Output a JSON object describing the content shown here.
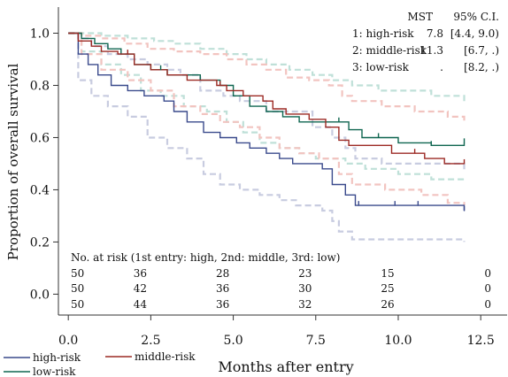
{
  "chart_data": {
    "type": "line",
    "step": true,
    "ylabel": "Proportion of overall survival",
    "xlabel": "Months after entry",
    "xlim": [
      -0.3,
      13.3
    ],
    "ylim": [
      -0.08,
      1.1
    ],
    "x_ticks": [
      0.0,
      2.5,
      5.0,
      7.5,
      10.0,
      12.5
    ],
    "x_tick_labels": [
      "0.0",
      "2.5",
      "5.0",
      "7.5",
      "10.0",
      "12.5"
    ],
    "y_ticks": [
      0.0,
      0.2,
      0.4,
      0.6,
      0.8,
      1.0
    ],
    "y_tick_labels": [
      "0.0",
      "0.2",
      "0.4",
      "0.6",
      "0.8",
      "1.0"
    ],
    "grid": false,
    "legend_placement": "bottom-left",
    "series": [
      {
        "name": "high-risk",
        "color": "#3a4a8c",
        "ci_color": "#c8cce0",
        "points": [
          [
            0,
            1.0
          ],
          [
            0.3,
            0.92
          ],
          [
            0.6,
            0.88
          ],
          [
            0.9,
            0.84
          ],
          [
            1.3,
            0.8
          ],
          [
            1.8,
            0.78
          ],
          [
            2.3,
            0.76
          ],
          [
            2.9,
            0.74
          ],
          [
            3.2,
            0.7
          ],
          [
            3.6,
            0.66
          ],
          [
            4.1,
            0.62
          ],
          [
            4.6,
            0.6
          ],
          [
            5.1,
            0.58
          ],
          [
            5.5,
            0.56
          ],
          [
            6.0,
            0.54
          ],
          [
            6.4,
            0.52
          ],
          [
            6.8,
            0.5
          ],
          [
            7.7,
            0.48
          ],
          [
            8.0,
            0.42
          ],
          [
            8.4,
            0.38
          ],
          [
            8.7,
            0.34
          ],
          [
            12.0,
            0.32
          ]
        ],
        "censor_x": [
          8.8,
          9.9,
          10.6,
          12.0
        ],
        "ci_upper": [
          [
            0,
            1.0
          ],
          [
            0.3,
            0.98
          ],
          [
            0.7,
            0.95
          ],
          [
            1.2,
            0.92
          ],
          [
            1.8,
            0.9
          ],
          [
            2.4,
            0.88
          ],
          [
            3.0,
            0.86
          ],
          [
            3.4,
            0.84
          ],
          [
            4.0,
            0.78
          ],
          [
            4.7,
            0.76
          ],
          [
            5.2,
            0.74
          ],
          [
            6.0,
            0.7
          ],
          [
            7.4,
            0.64
          ],
          [
            8.0,
            0.6
          ],
          [
            8.4,
            0.56
          ],
          [
            8.7,
            0.52
          ],
          [
            9.5,
            0.5
          ],
          [
            12.0,
            0.47
          ]
        ],
        "ci_lower": [
          [
            0,
            1.0
          ],
          [
            0.3,
            0.82
          ],
          [
            0.7,
            0.76
          ],
          [
            1.2,
            0.72
          ],
          [
            1.8,
            0.68
          ],
          [
            2.4,
            0.6
          ],
          [
            3.0,
            0.56
          ],
          [
            3.6,
            0.52
          ],
          [
            4.1,
            0.46
          ],
          [
            4.6,
            0.42
          ],
          [
            5.2,
            0.4
          ],
          [
            5.8,
            0.38
          ],
          [
            6.4,
            0.36
          ],
          [
            6.9,
            0.34
          ],
          [
            7.4,
            0.34
          ],
          [
            7.7,
            0.32
          ],
          [
            8.0,
            0.28
          ],
          [
            8.2,
            0.24
          ],
          [
            8.6,
            0.21
          ],
          [
            12.0,
            0.2
          ]
        ]
      },
      {
        "name": "middle-risk",
        "color": "#9c2a24",
        "ci_color": "#f2c4c0",
        "points": [
          [
            0,
            1.0
          ],
          [
            0.3,
            0.97
          ],
          [
            0.7,
            0.95
          ],
          [
            1.0,
            0.93
          ],
          [
            1.5,
            0.92
          ],
          [
            2.0,
            0.88
          ],
          [
            2.5,
            0.86
          ],
          [
            3.0,
            0.84
          ],
          [
            3.6,
            0.82
          ],
          [
            4.5,
            0.8
          ],
          [
            4.8,
            0.78
          ],
          [
            5.3,
            0.76
          ],
          [
            5.9,
            0.74
          ],
          [
            6.2,
            0.71
          ],
          [
            6.6,
            0.69
          ],
          [
            7.3,
            0.67
          ],
          [
            7.8,
            0.64
          ],
          [
            8.2,
            0.59
          ],
          [
            8.5,
            0.57
          ],
          [
            9.8,
            0.54
          ],
          [
            10.8,
            0.52
          ],
          [
            11.4,
            0.5
          ],
          [
            12.0,
            0.5
          ]
        ],
        "censor_x": [
          1.8,
          4.6,
          10.5,
          12.0
        ],
        "ci_upper": [
          [
            0,
            1.0
          ],
          [
            0.4,
            0.99
          ],
          [
            1.0,
            0.98
          ],
          [
            1.7,
            0.96
          ],
          [
            2.4,
            0.94
          ],
          [
            3.2,
            0.93
          ],
          [
            4.0,
            0.92
          ],
          [
            4.8,
            0.9
          ],
          [
            5.4,
            0.88
          ],
          [
            6.0,
            0.86
          ],
          [
            6.6,
            0.83
          ],
          [
            7.3,
            0.82
          ],
          [
            7.9,
            0.8
          ],
          [
            8.3,
            0.76
          ],
          [
            8.6,
            0.74
          ],
          [
            9.5,
            0.72
          ],
          [
            10.5,
            0.7
          ],
          [
            11.5,
            0.68
          ],
          [
            12.0,
            0.66
          ]
        ],
        "ci_lower": [
          [
            0,
            1.0
          ],
          [
            0.4,
            0.92
          ],
          [
            1.0,
            0.86
          ],
          [
            1.8,
            0.82
          ],
          [
            2.5,
            0.78
          ],
          [
            3.2,
            0.72
          ],
          [
            4.0,
            0.69
          ],
          [
            4.6,
            0.66
          ],
          [
            5.2,
            0.64
          ],
          [
            5.8,
            0.6
          ],
          [
            6.4,
            0.56
          ],
          [
            7.0,
            0.54
          ],
          [
            7.6,
            0.52
          ],
          [
            8.2,
            0.46
          ],
          [
            8.6,
            0.42
          ],
          [
            9.6,
            0.4
          ],
          [
            10.7,
            0.38
          ],
          [
            11.5,
            0.35
          ],
          [
            12.0,
            0.34
          ]
        ]
      },
      {
        "name": "low-risk",
        "color": "#0f6650",
        "ci_color": "#bfe0d8",
        "points": [
          [
            0,
            1.0
          ],
          [
            0.4,
            0.98
          ],
          [
            0.8,
            0.96
          ],
          [
            1.2,
            0.94
          ],
          [
            1.6,
            0.92
          ],
          [
            2.0,
            0.88
          ],
          [
            2.5,
            0.86
          ],
          [
            3.0,
            0.84
          ],
          [
            4.0,
            0.82
          ],
          [
            4.6,
            0.8
          ],
          [
            5.0,
            0.76
          ],
          [
            5.5,
            0.72
          ],
          [
            6.0,
            0.7
          ],
          [
            6.5,
            0.68
          ],
          [
            7.0,
            0.66
          ],
          [
            8.5,
            0.63
          ],
          [
            8.9,
            0.6
          ],
          [
            10.0,
            0.58
          ],
          [
            11.0,
            0.57
          ],
          [
            12.0,
            0.58
          ]
        ],
        "censor_x": [
          2.8,
          4.6,
          8.2,
          9.4,
          11.0,
          12.0
        ],
        "ci_upper": [
          [
            0,
            1.0
          ],
          [
            0.4,
            1.0
          ],
          [
            1.0,
            0.99
          ],
          [
            1.8,
            0.98
          ],
          [
            2.6,
            0.97
          ],
          [
            3.2,
            0.96
          ],
          [
            4.0,
            0.94
          ],
          [
            4.8,
            0.92
          ],
          [
            5.4,
            0.9
          ],
          [
            6.0,
            0.88
          ],
          [
            6.7,
            0.86
          ],
          [
            7.4,
            0.84
          ],
          [
            8.0,
            0.82
          ],
          [
            8.6,
            0.8
          ],
          [
            9.4,
            0.78
          ],
          [
            11.0,
            0.76
          ],
          [
            12.0,
            0.74
          ]
        ],
        "ci_lower": [
          [
            0,
            1.0
          ],
          [
            0.4,
            0.93
          ],
          [
            1.0,
            0.88
          ],
          [
            1.6,
            0.84
          ],
          [
            2.2,
            0.78
          ],
          [
            2.8,
            0.76
          ],
          [
            3.5,
            0.72
          ],
          [
            4.2,
            0.7
          ],
          [
            4.8,
            0.66
          ],
          [
            5.3,
            0.62
          ],
          [
            5.8,
            0.58
          ],
          [
            6.4,
            0.56
          ],
          [
            7.0,
            0.54
          ],
          [
            7.5,
            0.52
          ],
          [
            8.4,
            0.5
          ],
          [
            9.0,
            0.48
          ],
          [
            10.0,
            0.46
          ],
          [
            11.0,
            0.44
          ],
          [
            12.0,
            0.43
          ]
        ]
      }
    ],
    "summary": {
      "header_mst": "MST",
      "header_ci": "95% C.I.",
      "rows": [
        {
          "label": "1: high-risk",
          "mst": "7.8",
          "ci": "[4.4, 9.0)"
        },
        {
          "label": "2: middle-risk",
          "mst": "11.3",
          "ci": "[6.7, .)"
        },
        {
          "label": "3: low-risk",
          "mst": ".",
          "ci": "[8.2, .)"
        }
      ]
    },
    "risk_table": {
      "title": "No. at risk (1st entry: high, 2nd: middle, 3rd: low)",
      "rows": [
        [
          "50",
          "36",
          "28",
          "23",
          "15",
          "0"
        ],
        [
          "50",
          "42",
          "36",
          "30",
          "25",
          "0"
        ],
        [
          "50",
          "44",
          "36",
          "32",
          "26",
          "0"
        ]
      ]
    }
  }
}
